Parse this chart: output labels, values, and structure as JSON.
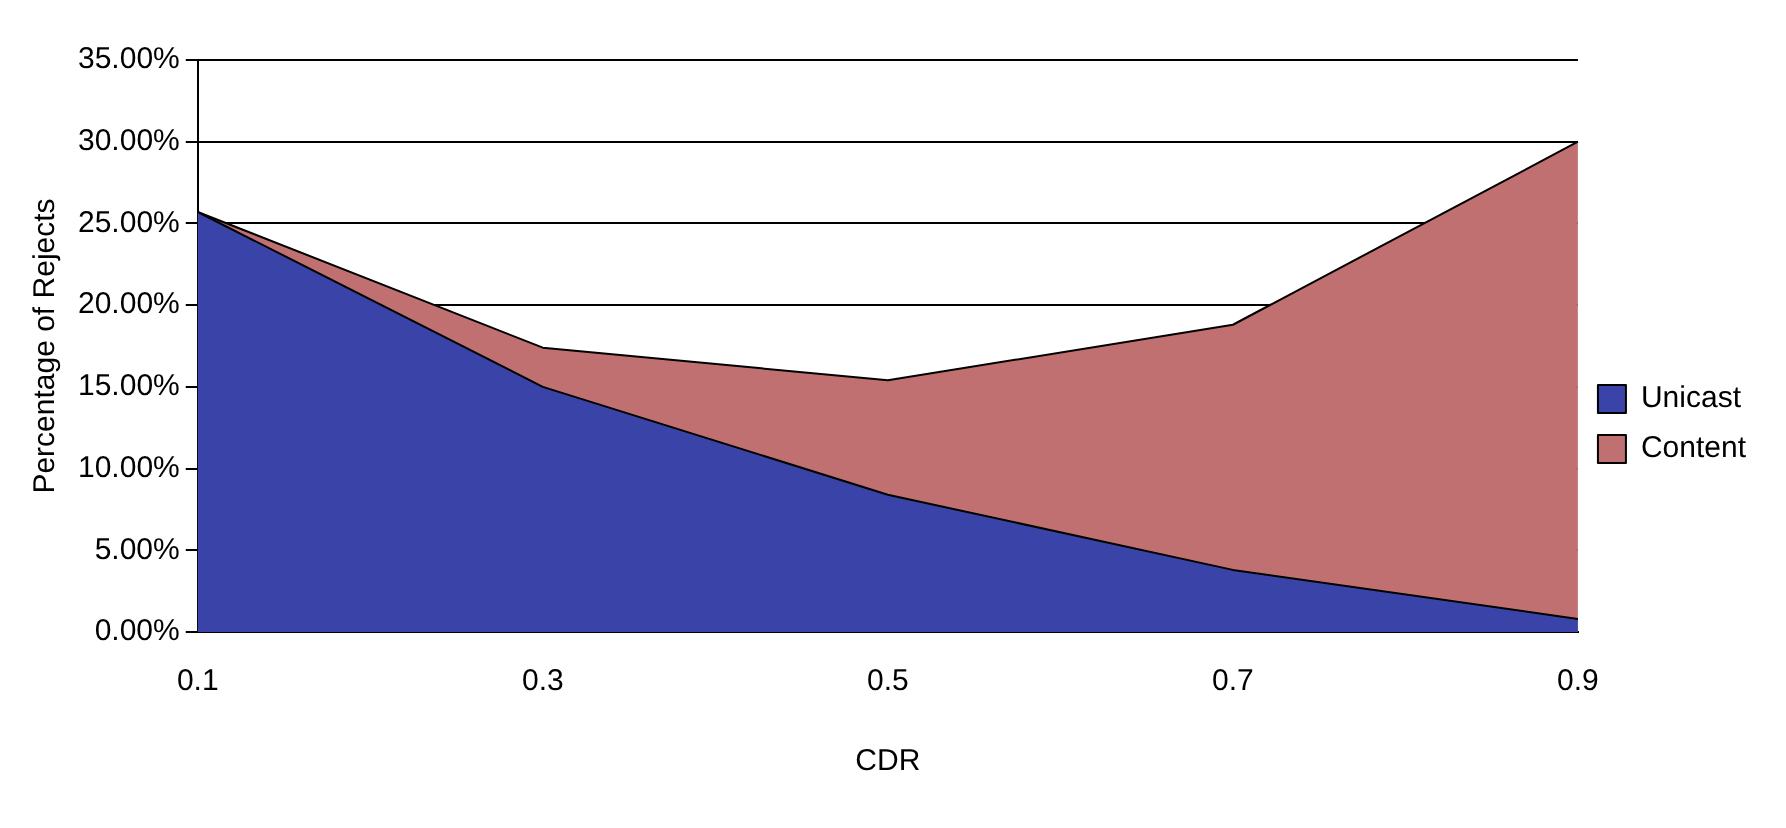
{
  "chart_data": {
    "type": "area",
    "xlabel": "CDR",
    "ylabel": "Percentage of Rejects",
    "categories": [
      "0.1",
      "0.3",
      "0.5",
      "0.7",
      "0.9"
    ],
    "series": [
      {
        "name": "Content",
        "color": "#c07070",
        "values": [
          25.7,
          17.4,
          15.4,
          18.8,
          30.0
        ]
      },
      {
        "name": "Unicast",
        "color": "#3a44a8",
        "values": [
          25.7,
          15.0,
          8.4,
          3.8,
          0.8
        ]
      }
    ],
    "ylim": [
      0,
      35
    ],
    "yticks": [
      {
        "value": 0,
        "label": "0.00%"
      },
      {
        "value": 5,
        "label": "5.00%"
      },
      {
        "value": 10,
        "label": "10.00%"
      },
      {
        "value": 15,
        "label": "15.00%"
      },
      {
        "value": 20,
        "label": "20.00%"
      },
      {
        "value": 25,
        "label": "25.00%"
      },
      {
        "value": 30,
        "label": "30.00%"
      },
      {
        "value": 35,
        "label": "35.00%"
      }
    ],
    "grid": "y",
    "legend": "right"
  }
}
